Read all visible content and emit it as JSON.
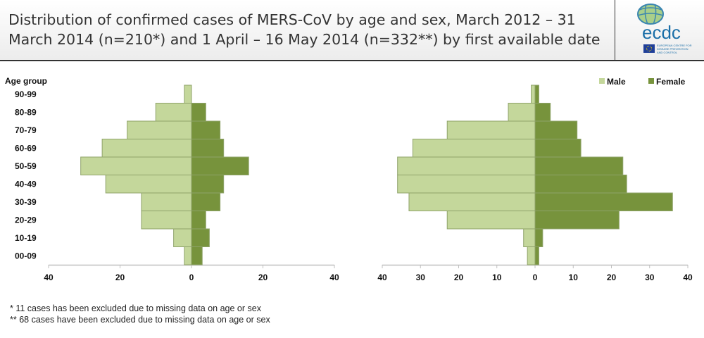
{
  "header": {
    "title_line1": "Distribution of confirmed cases of MERS-CoV by age and sex, March 2012 – 31",
    "title_line2": "March 2014 (n=210*) and 1 April – 16 May 2014 (n=332**) by first available date",
    "logo": {
      "name": "ecdc",
      "text": "ecdc",
      "subtitle": [
        "EUROPEAN CENTRE FOR",
        "DISEASE PREVENTION",
        "AND CONTROL"
      ]
    }
  },
  "colors": {
    "male": "#c4d79b",
    "female": "#77933c",
    "bar_edge": "#8fa36a",
    "axis": "#bfbfbf"
  },
  "footnotes": [
    "* 11 cases has been excluded due to missing data on age or sex",
    "** 68 cases have been excluded due to missing data on age or sex"
  ],
  "chart_data": [
    {
      "type": "bar",
      "orientation": "horizontal-population-pyramid",
      "title": "March 2012 – 31 March 2014 (n=210)",
      "ylabel": "Age group",
      "categories": [
        "90-99",
        "80-89",
        "70-79",
        "60-69",
        "50-59",
        "40-49",
        "30-39",
        "20-29",
        "10-19",
        "00-09"
      ],
      "series": [
        {
          "name": "Male",
          "side": "left",
          "values": [
            2,
            10,
            18,
            25,
            31,
            24,
            14,
            14,
            5,
            2
          ]
        },
        {
          "name": "Female",
          "side": "right",
          "values": [
            0,
            4,
            8,
            9,
            16,
            9,
            8,
            4,
            5,
            3
          ]
        }
      ],
      "xlim": [
        -40,
        40
      ],
      "xticks": [
        -40,
        -20,
        0,
        20,
        40
      ],
      "xtick_labels": [
        "40",
        "20",
        "0",
        "20",
        "40"
      ],
      "grid": false
    },
    {
      "type": "bar",
      "orientation": "horizontal-population-pyramid",
      "title": "1 April – 16 May 2014 (n=332)",
      "categories": [
        "90-99",
        "80-89",
        "70-79",
        "60-69",
        "50-59",
        "40-49",
        "30-39",
        "20-29",
        "10-19",
        "00-09"
      ],
      "series": [
        {
          "name": "Male",
          "side": "left",
          "values": [
            1,
            7,
            23,
            32,
            36,
            36,
            33,
            23,
            3,
            2
          ]
        },
        {
          "name": "Female",
          "side": "right",
          "values": [
            1,
            4,
            11,
            12,
            23,
            24,
            36,
            22,
            2,
            1
          ]
        }
      ],
      "xlim": [
        -40,
        40
      ],
      "xticks": [
        -40,
        -30,
        -20,
        -10,
        0,
        10,
        20,
        30,
        40
      ],
      "xtick_labels": [
        "40",
        "30",
        "20",
        "10",
        "0",
        "10",
        "20",
        "30",
        "40"
      ],
      "grid": false,
      "legend": {
        "position": "top-right",
        "entries": [
          "Male",
          "Female"
        ]
      }
    }
  ]
}
